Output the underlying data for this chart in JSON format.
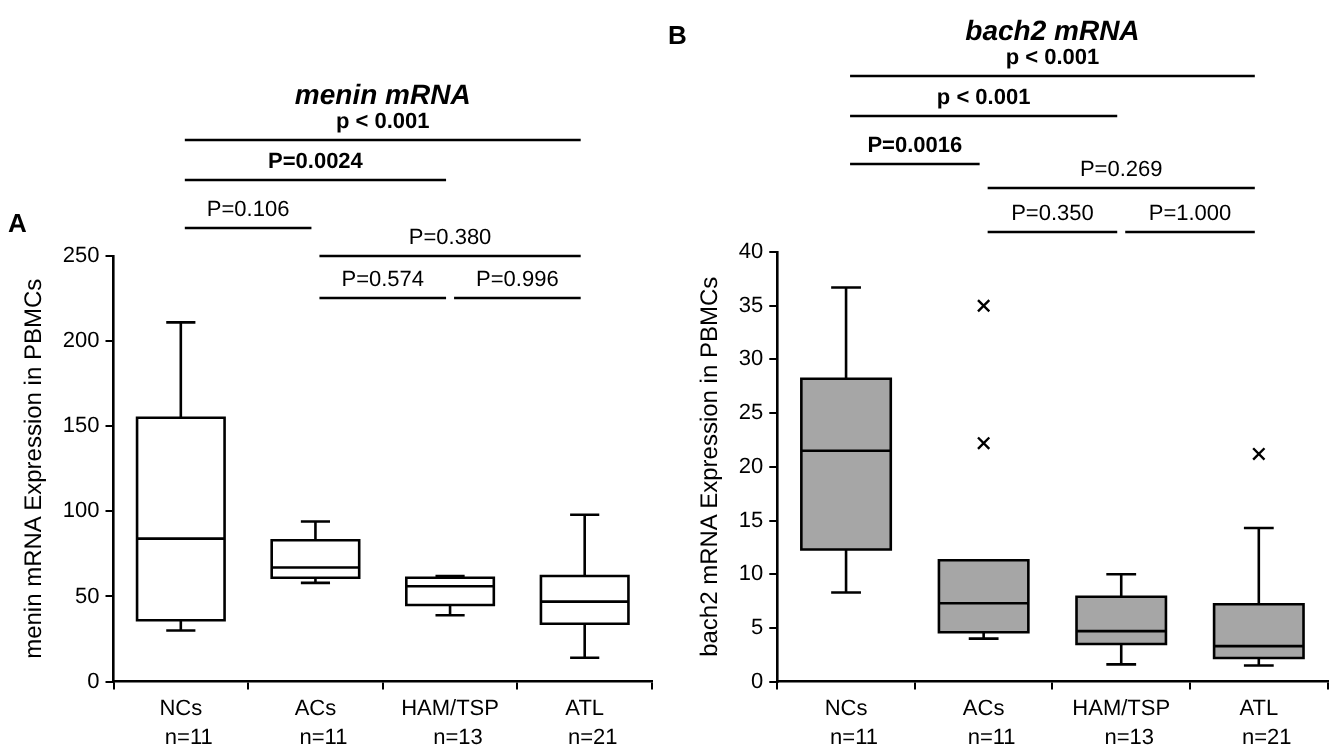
{
  "chart_data": [
    {
      "type": "box",
      "title": "menin mRNA",
      "ylabel": "menin mRNA Expression in PBMCs",
      "categories": [
        "NCs",
        "ACs",
        "HAM/TSP",
        "ATL"
      ],
      "color": "#ffffff",
      "boxes": [
        {
          "low": 30,
          "q1": 36,
          "median": 84,
          "q3": 155,
          "high": 211
        },
        {
          "low": 58,
          "q1": 61,
          "median": 67,
          "q3": 83,
          "high": 94
        },
        {
          "low": 39,
          "q1": 45,
          "median": 56,
          "q3": 61,
          "high": 62
        },
        {
          "low": 14,
          "q1": 34,
          "median": 47,
          "q3": 62,
          "high": 98
        }
      ],
      "ylim": [
        0,
        250
      ],
      "yticks": [
        0,
        50,
        100,
        150,
        200,
        250
      ],
      "grid": false,
      "legend": false,
      "annotations": [
        "A",
        "p < 0.001",
        "P=0.0024",
        "P=0.106",
        "P=0.380",
        "P=0.574",
        "P=0.996",
        "n=11",
        "n=11",
        "n=13",
        "n=21"
      ]
    },
    {
      "type": "box",
      "title": "bach2 mRNA",
      "ylabel": "bach2 mRNA Expression in PBMCs",
      "categories": [
        "NCs",
        "ACs",
        "HAM/TSP",
        "ATL"
      ],
      "color": "#a6a6a6",
      "boxes": [
        {
          "low": 8.3,
          "q1": 12.3,
          "median": 21.5,
          "q3": 28.2,
          "high": 36.7
        },
        {
          "low": 4,
          "q1": 4.6,
          "median": 7.3,
          "q3": 11.3,
          "high": 11.3,
          "outliers": [
            35,
            22.2
          ]
        },
        {
          "low": 1.6,
          "q1": 3.5,
          "median": 4.7,
          "q3": 7.9,
          "high": 10
        },
        {
          "low": 1.5,
          "q1": 2.2,
          "median": 3.3,
          "q3": 7.2,
          "high": 14.3,
          "outliers": [
            21.2
          ]
        }
      ],
      "ylim": [
        0,
        40
      ],
      "yticks": [
        0,
        5,
        10,
        15,
        20,
        25,
        30,
        35,
        40
      ],
      "grid": false,
      "legend": false,
      "annotations": [
        "B",
        "p < 0.001",
        "p < 0.001",
        "P=0.0016",
        "P=0.269",
        "P=0.350",
        "P=1.000",
        "n=11",
        "n=11",
        "n=13",
        "n=21"
      ]
    }
  ]
}
